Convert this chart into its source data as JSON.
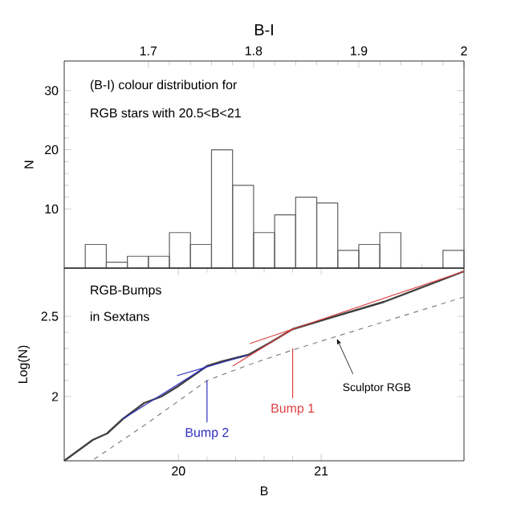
{
  "chart_data": [
    {
      "type": "histogram",
      "xlabel": "B-I",
      "ylabel": "N",
      "annotations": [
        "(B-I) colour distribution for",
        "RGB stars with 20.5<B<21"
      ],
      "bins": [
        1.62,
        1.64,
        1.66,
        1.68,
        1.7,
        1.72,
        1.74,
        1.76,
        1.78,
        1.8,
        1.82,
        1.84,
        1.86,
        1.88,
        1.9,
        1.92,
        1.94,
        1.96,
        1.98,
        2.0
      ],
      "values": [
        0,
        4,
        1,
        2,
        2,
        6,
        4,
        20,
        14,
        6,
        9,
        12,
        11,
        3,
        4,
        6,
        0,
        0,
        3
      ],
      "color": "#606060",
      "xlim": [
        1.62,
        2.0
      ],
      "xticks": [
        1.7,
        1.8,
        1.9,
        2
      ],
      "ylim": [
        0,
        35
      ],
      "yticks": [
        10,
        20,
        30
      ]
    },
    {
      "type": "line",
      "xlabel": "B",
      "ylabel": "Log(N)",
      "annotations": [
        "RGB-Bumps",
        "in Sextans",
        {
          "text": "Bump 2",
          "x": 20.2,
          "y": 1.84
        },
        {
          "text": "Bump 1",
          "x": 20.8,
          "y": 1.99
        },
        {
          "text": "Sculptor RGB",
          "x": 21.11,
          "y": 2.36
        }
      ],
      "series": [
        {
          "color": "#404040",
          "x": [
            19.2,
            19.4,
            19.5,
            19.61,
            19.76,
            19.88,
            19.99,
            20.2,
            20.31,
            20.49,
            20.65,
            20.8,
            21.06,
            21.44,
            22.0
          ],
          "values": [
            1.6,
            1.73,
            1.77,
            1.86,
            1.96,
            2.0,
            2.06,
            2.19,
            2.22,
            2.26,
            2.34,
            2.42,
            2.49,
            2.59,
            2.78
          ]
        },
        {
          "color": "#808080",
          "line_style": "dashed",
          "x": [
            19.41,
            19.76,
            20.2,
            20.5,
            20.8,
            21.09,
            22.0
          ],
          "values": [
            1.61,
            1.82,
            2.1,
            2.2,
            2.29,
            2.37,
            2.62
          ]
        },
        {
          "color": "#3030c0",
          "x": [
            19.61,
            20.2
          ],
          "values": [
            1.86,
            2.19
          ]
        },
        {
          "color": "#3030c0",
          "x": [
            19.99,
            20.49
          ],
          "values": [
            2.13,
            2.26
          ]
        },
        {
          "color": "#e04040",
          "x": [
            20.38,
            20.8
          ],
          "values": [
            2.19,
            2.42
          ]
        },
        {
          "color": "#e04040",
          "x": [
            20.5,
            22.0
          ],
          "values": [
            2.33,
            2.78
          ]
        },
        {
          "color": "#3030c0",
          "x": [
            20.2,
            20.2
          ],
          "values": [
            1.84,
            2.1
          ]
        },
        {
          "color": "#e04040",
          "x": [
            20.8,
            20.8
          ],
          "values": [
            1.99,
            2.3
          ]
        }
      ],
      "xlim": [
        19.2,
        22
      ],
      "xticks": [
        20,
        21
      ],
      "ylim": [
        1.6,
        2.8
      ],
      "yticks": [
        2,
        2.5
      ]
    }
  ]
}
